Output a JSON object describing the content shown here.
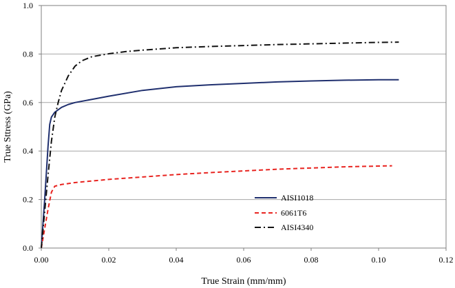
{
  "chart_data": {
    "type": "line",
    "title": "",
    "xlabel": "True Strain (mm/mm)",
    "ylabel": "True Sttress (GPa)",
    "xlim": [
      0,
      0.12
    ],
    "ylim": [
      0,
      1.0
    ],
    "x_ticks": [
      "0.00",
      "0.02",
      "0.04",
      "0.06",
      "0.08",
      "0.10",
      "0.12"
    ],
    "y_ticks": [
      "0.0",
      "0.2",
      "0.4",
      "0.6",
      "0.8",
      "1.0"
    ],
    "x_tick_values": [
      0,
      0.02,
      0.04,
      0.06,
      0.08,
      0.1,
      0.12
    ],
    "y_tick_values": [
      0,
      0.2,
      0.4,
      0.6,
      0.8,
      1.0
    ],
    "grid": "horizontal",
    "legend_position": "lower-right",
    "series": [
      {
        "name": "AISI1018",
        "color": "#1f2f6e",
        "style": "solid",
        "x": [
          0,
          0.0005,
          0.001,
          0.0015,
          0.002,
          0.0025,
          0.003,
          0.004,
          0.006,
          0.008,
          0.01,
          0.015,
          0.02,
          0.03,
          0.04,
          0.05,
          0.06,
          0.07,
          0.08,
          0.09,
          0.1,
          0.106
        ],
        "y": [
          0,
          0.1,
          0.2,
          0.31,
          0.42,
          0.51,
          0.54,
          0.56,
          0.58,
          0.592,
          0.6,
          0.613,
          0.626,
          0.65,
          0.665,
          0.673,
          0.679,
          0.685,
          0.689,
          0.692,
          0.694,
          0.694
        ]
      },
      {
        "name": "6061T6",
        "color": "#e8231f",
        "style": "dashed",
        "x": [
          0,
          0.001,
          0.002,
          0.003,
          0.004,
          0.006,
          0.01,
          0.02,
          0.03,
          0.04,
          0.05,
          0.06,
          0.07,
          0.08,
          0.09,
          0.1,
          0.104
        ],
        "y": [
          0,
          0.08,
          0.16,
          0.23,
          0.255,
          0.262,
          0.27,
          0.283,
          0.293,
          0.303,
          0.311,
          0.318,
          0.325,
          0.33,
          0.335,
          0.338,
          0.339
        ]
      },
      {
        "name": "AISI4340",
        "color": "#111111",
        "style": "dashdot",
        "x": [
          0,
          0.001,
          0.002,
          0.003,
          0.004,
          0.005,
          0.006,
          0.008,
          0.01,
          0.012,
          0.015,
          0.02,
          0.025,
          0.03,
          0.04,
          0.05,
          0.06,
          0.07,
          0.08,
          0.09,
          0.1,
          0.106
        ],
        "y": [
          0,
          0.15,
          0.3,
          0.44,
          0.54,
          0.6,
          0.65,
          0.71,
          0.75,
          0.772,
          0.789,
          0.801,
          0.81,
          0.816,
          0.826,
          0.831,
          0.835,
          0.839,
          0.842,
          0.845,
          0.848,
          0.849
        ]
      }
    ]
  }
}
